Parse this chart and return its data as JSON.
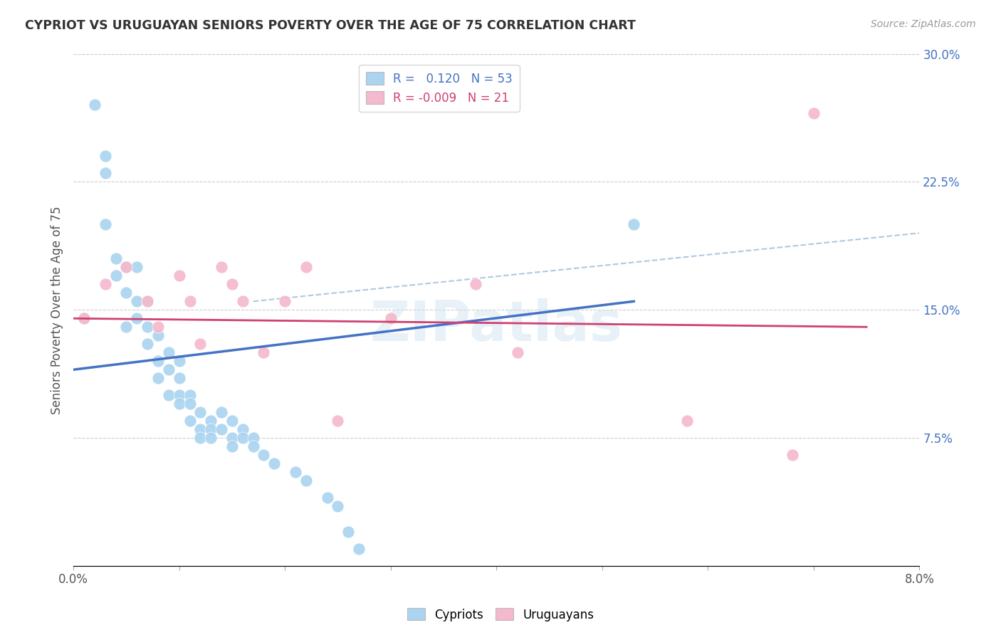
{
  "title": "CYPRIOT VS URUGUAYAN SENIORS POVERTY OVER THE AGE OF 75 CORRELATION CHART",
  "source": "Source: ZipAtlas.com",
  "ylabel": "Seniors Poverty Over the Age of 75",
  "xlim": [
    0.0,
    0.08
  ],
  "ylim": [
    0.0,
    0.3
  ],
  "xticks": [
    0.0,
    0.01,
    0.02,
    0.03,
    0.04,
    0.05,
    0.06,
    0.07,
    0.08
  ],
  "xticklabels": [
    "0.0%",
    "",
    "",
    "",
    "",
    "",
    "",
    "",
    "8.0%"
  ],
  "yticks_right": [
    0.075,
    0.15,
    0.225,
    0.3
  ],
  "ytick_right_labels": [
    "7.5%",
    "15.0%",
    "22.5%",
    "30.0%"
  ],
  "blue_color": "#aad4f0",
  "pink_color": "#f5b8cc",
  "blue_line_color": "#4472c4",
  "pink_line_color": "#d04070",
  "dashed_line_color": "#b0c8e0",
  "watermark": "ZIPatlas",
  "blue_x": [
    0.001,
    0.002,
    0.003,
    0.003,
    0.003,
    0.004,
    0.004,
    0.005,
    0.005,
    0.005,
    0.006,
    0.006,
    0.006,
    0.007,
    0.007,
    0.007,
    0.008,
    0.008,
    0.008,
    0.009,
    0.009,
    0.009,
    0.01,
    0.01,
    0.01,
    0.01,
    0.011,
    0.011,
    0.011,
    0.012,
    0.012,
    0.012,
    0.013,
    0.013,
    0.013,
    0.014,
    0.014,
    0.015,
    0.015,
    0.015,
    0.016,
    0.016,
    0.017,
    0.017,
    0.018,
    0.019,
    0.021,
    0.022,
    0.024,
    0.025,
    0.026,
    0.027,
    0.053
  ],
  "blue_y": [
    0.145,
    0.27,
    0.23,
    0.24,
    0.2,
    0.18,
    0.17,
    0.175,
    0.16,
    0.14,
    0.175,
    0.155,
    0.145,
    0.155,
    0.14,
    0.13,
    0.135,
    0.12,
    0.11,
    0.125,
    0.115,
    0.1,
    0.12,
    0.11,
    0.1,
    0.095,
    0.1,
    0.095,
    0.085,
    0.09,
    0.08,
    0.075,
    0.085,
    0.08,
    0.075,
    0.09,
    0.08,
    0.085,
    0.075,
    0.07,
    0.08,
    0.075,
    0.075,
    0.07,
    0.065,
    0.06,
    0.055,
    0.05,
    0.04,
    0.035,
    0.02,
    0.01,
    0.2
  ],
  "pink_x": [
    0.001,
    0.003,
    0.005,
    0.007,
    0.008,
    0.01,
    0.011,
    0.012,
    0.014,
    0.015,
    0.016,
    0.018,
    0.02,
    0.022,
    0.025,
    0.03,
    0.038,
    0.042,
    0.058,
    0.068,
    0.07
  ],
  "pink_y": [
    0.145,
    0.165,
    0.175,
    0.155,
    0.14,
    0.17,
    0.155,
    0.13,
    0.175,
    0.165,
    0.155,
    0.125,
    0.155,
    0.175,
    0.085,
    0.145,
    0.165,
    0.125,
    0.085,
    0.065,
    0.265
  ],
  "blue_trend_x": [
    0.0,
    0.053
  ],
  "blue_trend_y": [
    0.115,
    0.155
  ],
  "pink_trend_x": [
    0.0,
    0.075
  ],
  "pink_trend_y": [
    0.145,
    0.14
  ],
  "dashed_trend_x": [
    0.017,
    0.08
  ],
  "dashed_trend_y": [
    0.155,
    0.195
  ]
}
